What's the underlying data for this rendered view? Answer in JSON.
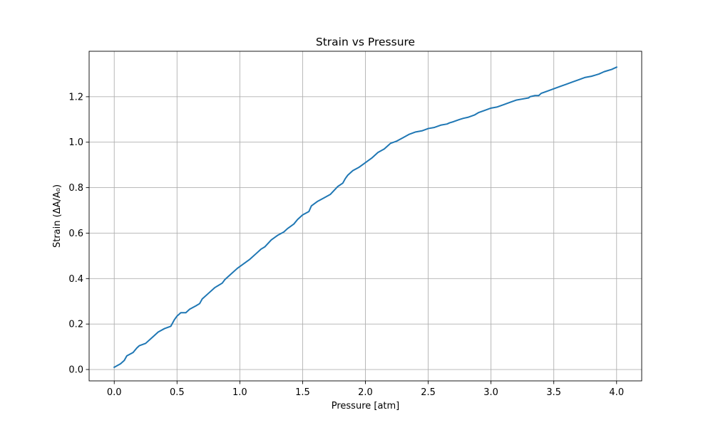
{
  "chart_data": {
    "type": "line",
    "title": "Strain vs Pressure",
    "xlabel": "Pressure [atm]",
    "ylabel": "Strain (ΔA/A₀)",
    "xlim": [
      -0.2,
      4.2
    ],
    "ylim": [
      -0.05,
      1.4
    ],
    "xticks": [
      0.0,
      0.5,
      1.0,
      1.5,
      2.0,
      2.5,
      3.0,
      3.5,
      4.0
    ],
    "xtick_labels": [
      "0.0",
      "0.5",
      "1.0",
      "1.5",
      "2.0",
      "2.5",
      "3.0",
      "3.5",
      "4.0"
    ],
    "yticks": [
      0.0,
      0.2,
      0.4,
      0.6,
      0.8,
      1.0,
      1.2
    ],
    "ytick_labels": [
      "0.0",
      "0.2",
      "0.4",
      "0.6",
      "0.8",
      "1.0",
      "1.2"
    ],
    "grid": true,
    "colors": {
      "line": "#1f77b4",
      "grid": "#b0b0b0",
      "axes": "#000000"
    },
    "series": [
      {
        "x": [
          0.0,
          0.05,
          0.08,
          0.1,
          0.15,
          0.18,
          0.2,
          0.25,
          0.3,
          0.35,
          0.4,
          0.45,
          0.48,
          0.5,
          0.53,
          0.57,
          0.6,
          0.65,
          0.68,
          0.7,
          0.75,
          0.8,
          0.83,
          0.86,
          0.88,
          0.93,
          0.98,
          1.03,
          1.08,
          1.13,
          1.17,
          1.2,
          1.25,
          1.3,
          1.35,
          1.38,
          1.43,
          1.46,
          1.5,
          1.55,
          1.57,
          1.62,
          1.67,
          1.72,
          1.78,
          1.82,
          1.84,
          1.86,
          1.9,
          1.95,
          2.0,
          2.05,
          2.1,
          2.15,
          2.18,
          2.2,
          2.25,
          2.3,
          2.35,
          2.4,
          2.45,
          2.5,
          2.55,
          2.6,
          2.65,
          2.67,
          2.7,
          2.75,
          2.78,
          2.82,
          2.87,
          2.9,
          2.95,
          3.0,
          3.05,
          3.1,
          3.15,
          3.2,
          3.25,
          3.3,
          3.31,
          3.35,
          3.38,
          3.4,
          3.45,
          3.5,
          3.55,
          3.6,
          3.65,
          3.7,
          3.75,
          3.8,
          3.83,
          3.86,
          3.9,
          3.93,
          3.96,
          4.0
        ],
        "y": [
          0.01,
          0.025,
          0.04,
          0.06,
          0.075,
          0.095,
          0.105,
          0.115,
          0.14,
          0.165,
          0.18,
          0.19,
          0.22,
          0.235,
          0.25,
          0.25,
          0.265,
          0.28,
          0.29,
          0.31,
          0.335,
          0.36,
          0.37,
          0.38,
          0.395,
          0.42,
          0.445,
          0.465,
          0.485,
          0.51,
          0.53,
          0.54,
          0.57,
          0.59,
          0.605,
          0.62,
          0.64,
          0.66,
          0.68,
          0.695,
          0.72,
          0.74,
          0.755,
          0.77,
          0.805,
          0.82,
          0.84,
          0.855,
          0.875,
          0.89,
          0.91,
          0.93,
          0.955,
          0.97,
          0.985,
          0.995,
          1.005,
          1.02,
          1.035,
          1.045,
          1.05,
          1.06,
          1.065,
          1.075,
          1.08,
          1.085,
          1.09,
          1.1,
          1.105,
          1.11,
          1.12,
          1.13,
          1.14,
          1.15,
          1.155,
          1.165,
          1.175,
          1.185,
          1.19,
          1.195,
          1.2,
          1.205,
          1.205,
          1.215,
          1.225,
          1.235,
          1.245,
          1.255,
          1.265,
          1.275,
          1.285,
          1.29,
          1.295,
          1.3,
          1.31,
          1.315,
          1.32,
          1.33
        ]
      }
    ]
  }
}
